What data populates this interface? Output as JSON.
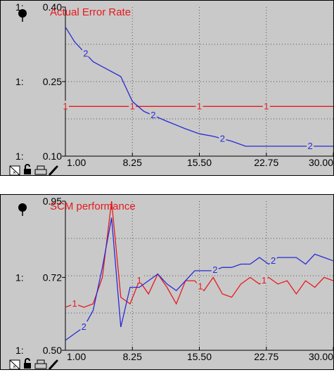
{
  "chart_data": [
    {
      "type": "line",
      "title": "Actual Error Rate",
      "ylim": [
        0.1,
        0.4
      ],
      "xlim": [
        1.0,
        30.0
      ],
      "y_ticks": [
        {
          "label": "0.40",
          "value": 0.4
        },
        {
          "label": "0.25",
          "value": 0.25
        },
        {
          "label": "0.10",
          "value": 0.1
        }
      ],
      "axis_prefixes": [
        "1:",
        "1:",
        "1:"
      ],
      "x_ticks": [
        {
          "label": "1.00",
          "value": 1.0
        },
        {
          "label": "8.25",
          "value": 8.25
        },
        {
          "label": "15.50",
          "value": 15.5
        },
        {
          "label": "22.75",
          "value": 22.75
        },
        {
          "label": "30.00",
          "value": 30.0
        }
      ],
      "grid": true,
      "series": [
        {
          "id": "1",
          "color": "#e8191d",
          "x": [
            1,
            8.25,
            15.5,
            22.75,
            30
          ],
          "y": [
            0.2,
            0.2,
            0.2,
            0.2,
            0.2
          ],
          "marker_x": [
            1,
            8.25,
            15.5,
            22.75
          ]
        },
        {
          "id": "2",
          "color": "#2a2ad6",
          "x": [
            1,
            2,
            4,
            5,
            7,
            8.25,
            9.5,
            12,
            14,
            15.5,
            17,
            19,
            20.5,
            22.75,
            26,
            30
          ],
          "y": [
            0.36,
            0.33,
            0.29,
            0.28,
            0.26,
            0.21,
            0.19,
            0.17,
            0.155,
            0.145,
            0.14,
            0.13,
            0.12,
            0.12,
            0.12,
            0.12
          ],
          "marker_x": [
            3.2,
            10.5,
            18,
            27.5
          ]
        }
      ]
    },
    {
      "type": "line",
      "title": "SCM performance",
      "ylim": [
        0.5,
        0.95
      ],
      "xlim": [
        1.0,
        30.0
      ],
      "y_ticks": [
        {
          "label": "0.95",
          "value": 0.95
        },
        {
          "label": "0.72",
          "value": 0.72
        },
        {
          "label": "0.50",
          "value": 0.5
        }
      ],
      "axis_prefixes": [
        "",
        "1:",
        "1:"
      ],
      "x_ticks": [
        {
          "label": "1.00",
          "value": 1.0
        },
        {
          "label": "8.25",
          "value": 8.25
        },
        {
          "label": "15.50",
          "value": 15.5
        },
        {
          "label": "22.75",
          "value": 22.75
        },
        {
          "label": "30.00",
          "value": 30.0
        }
      ],
      "grid": true,
      "series": [
        {
          "id": "1",
          "color": "#e8191d",
          "x": [
            1,
            2,
            3,
            4,
            5,
            6,
            7,
            8,
            9,
            10,
            11,
            12,
            13,
            14,
            15,
            16,
            17,
            18,
            19,
            20,
            21,
            22,
            23,
            24,
            25,
            26,
            27,
            28,
            29,
            30
          ],
          "y": [
            0.63,
            0.64,
            0.63,
            0.64,
            0.72,
            0.95,
            0.66,
            0.64,
            0.71,
            0.67,
            0.73,
            0.69,
            0.64,
            0.71,
            0.71,
            0.68,
            0.72,
            0.67,
            0.66,
            0.7,
            0.72,
            0.7,
            0.72,
            0.7,
            0.71,
            0.67,
            0.71,
            0.69,
            0.72,
            0.71
          ],
          "marker_x": [
            2,
            9,
            15.6,
            22.5
          ]
        },
        {
          "id": "2",
          "color": "#2a2ad6",
          "x": [
            1,
            2,
            3,
            4,
            5,
            6,
            7,
            8,
            9,
            10,
            11,
            12,
            13,
            14,
            15,
            16,
            17,
            18,
            19,
            20,
            21,
            22,
            23,
            24,
            25,
            26,
            27,
            28,
            29,
            30
          ],
          "y": [
            0.53,
            0.55,
            0.57,
            0.62,
            0.75,
            0.9,
            0.57,
            0.69,
            0.69,
            0.71,
            0.73,
            0.7,
            0.68,
            0.71,
            0.74,
            0.74,
            0.74,
            0.75,
            0.75,
            0.76,
            0.76,
            0.78,
            0.76,
            0.78,
            0.78,
            0.78,
            0.76,
            0.79,
            0.78,
            0.77
          ],
          "marker_x": [
            3,
            17.2,
            23.5
          ]
        }
      ]
    }
  ]
}
